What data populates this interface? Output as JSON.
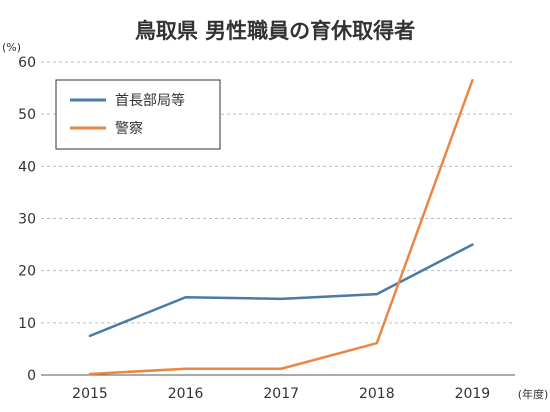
{
  "chart_data": {
    "type": "line",
    "title": "鳥取県 男性職員の育休取得者",
    "ylabel": "(%)",
    "xlabel": "(年度)",
    "x": [
      "2015",
      "2016",
      "2017",
      "2018",
      "2019"
    ],
    "ylim": [
      0,
      60
    ],
    "yticks": [
      0,
      10,
      20,
      30,
      40,
      50,
      60
    ],
    "grid": true,
    "legend_position": "top-left",
    "series": [
      {
        "name": "首長部局等",
        "color": "#4a7aa8",
        "values": [
          7.5,
          14.9,
          14.6,
          15.5,
          25
        ]
      },
      {
        "name": "警察",
        "color": "#ea8745",
        "values": [
          0.2,
          1.2,
          1.2,
          6.1,
          56.5
        ]
      }
    ]
  }
}
